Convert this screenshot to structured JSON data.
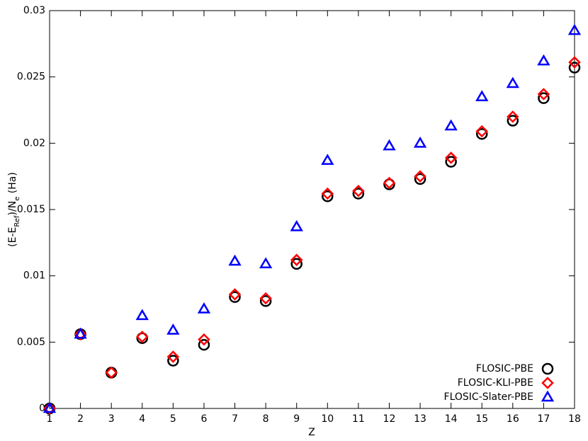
{
  "chart_data": {
    "type": "scatter",
    "xlabel": "Z",
    "ylabel_parts": [
      "(E-E",
      "Ref",
      ")/N",
      "e",
      " (Ha)"
    ],
    "x": [
      1,
      2,
      3,
      4,
      5,
      6,
      7,
      8,
      9,
      10,
      11,
      12,
      13,
      14,
      15,
      16,
      17,
      18
    ],
    "xlim": [
      1,
      18
    ],
    "xticks": [
      1,
      2,
      3,
      4,
      5,
      6,
      7,
      8,
      9,
      10,
      11,
      12,
      13,
      14,
      15,
      16,
      17,
      18
    ],
    "ylim": [
      0,
      0.03
    ],
    "yticks": [
      0,
      0.005,
      0.01,
      0.015,
      0.02,
      0.025,
      0.03
    ],
    "legend": "lower right",
    "series": [
      {
        "name": "FLOSIC-PBE",
        "color": "#000000",
        "marker": "circle",
        "values": [
          0,
          0.0056,
          0.0027,
          0.0053,
          0.0036,
          0.0048,
          0.0084,
          0.0081,
          0.0109,
          0.016,
          0.0162,
          0.0169,
          0.0173,
          0.0186,
          0.0207,
          0.0217,
          0.0234,
          0.0257
        ]
      },
      {
        "name": "FLOSIC-KLI-PBE",
        "color": "#ff0000",
        "marker": "diamond",
        "values": [
          0,
          0.0056,
          0.0027,
          0.0054,
          0.0039,
          0.0052,
          0.0086,
          0.0083,
          0.0112,
          0.0162,
          0.0164,
          0.017,
          0.0175,
          0.0189,
          0.0209,
          0.022,
          0.0237,
          0.0261
        ]
      },
      {
        "name": "FLOSIC-Slater-PBE",
        "color": "#0000ff",
        "marker": "triangle",
        "values": [
          0,
          0.0056,
          null,
          0.007,
          0.0059,
          0.0075,
          0.0111,
          0.0109,
          0.0137,
          0.0187,
          null,
          0.0198,
          0.02,
          0.0213,
          0.0235,
          0.0245,
          0.0262,
          0.0285
        ]
      }
    ]
  }
}
